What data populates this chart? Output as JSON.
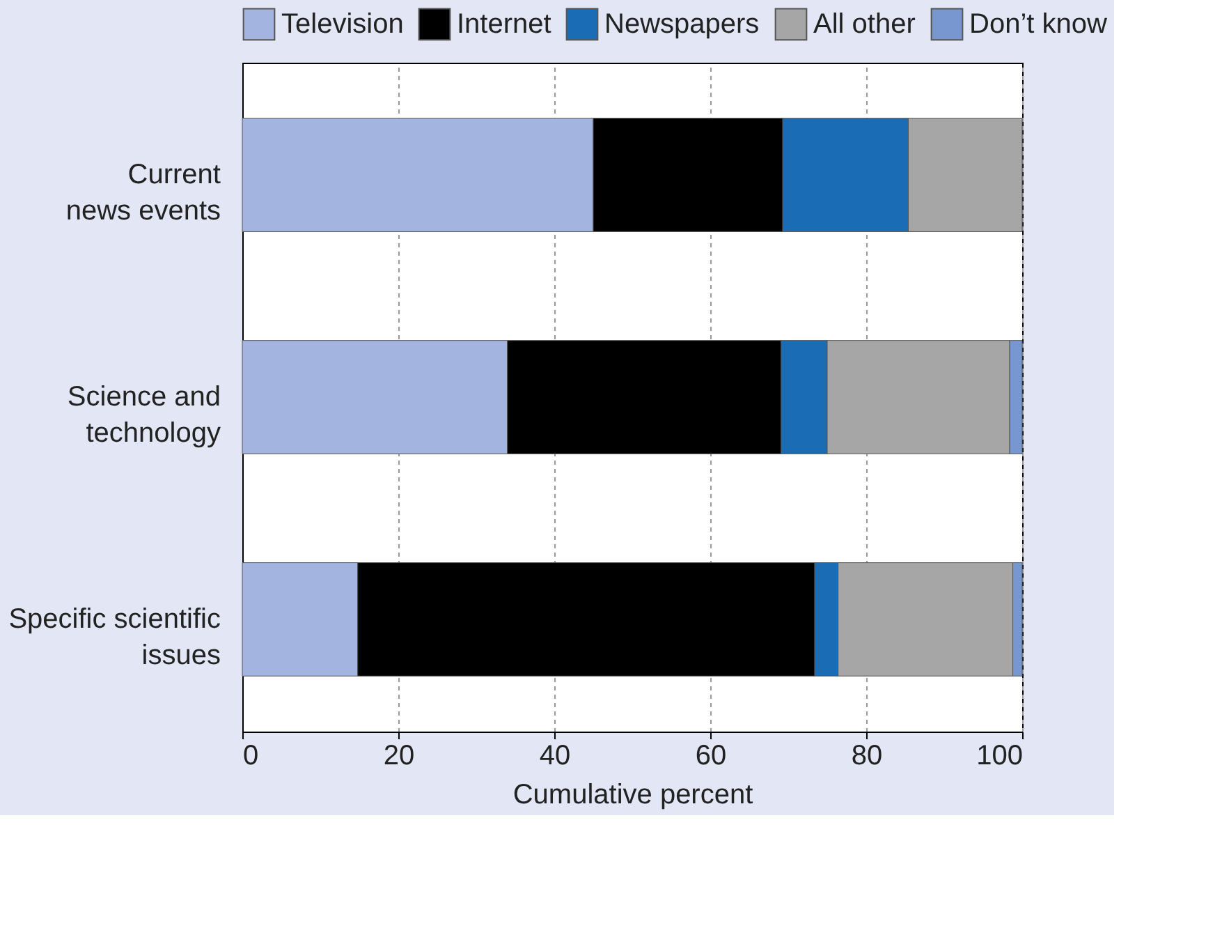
{
  "chart_data": {
    "type": "bar",
    "orientation": "horizontal",
    "stacked": true,
    "categories": [
      "Current\nnews events",
      "Science and\ntechnology",
      "Specific scientific\nissues"
    ],
    "series": [
      {
        "name": "Television",
        "color": "#a3b4e0",
        "values": [
          45.0,
          34.0,
          14.8
        ]
      },
      {
        "name": "Internet",
        "color": "#000000",
        "values": [
          24.3,
          35.1,
          58.6
        ]
      },
      {
        "name": "Newspapers",
        "color": "#1a6db5",
        "values": [
          16.1,
          5.9,
          3.0
        ]
      },
      {
        "name": "All other",
        "color": "#a6a6a6",
        "values": [
          14.6,
          23.4,
          22.4
        ]
      },
      {
        "name": "Don’t know",
        "color": "#7897d0",
        "values": [
          null,
          1.6,
          1.2
        ]
      }
    ],
    "xlabel": "Cumulative percent",
    "xlim": [
      0,
      100
    ],
    "xticks": [
      0,
      20,
      40,
      60,
      80,
      100
    ],
    "grid": "x",
    "legend": "top"
  }
}
